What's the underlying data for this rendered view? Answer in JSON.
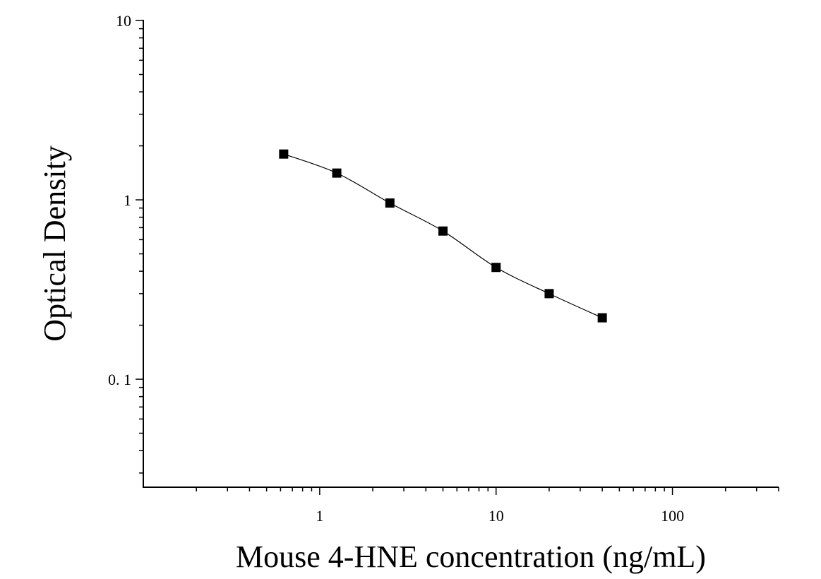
{
  "chart_data": {
    "type": "scatter",
    "title": "",
    "xlabel": "Mouse 4-HNE concentration (ng/mL)",
    "ylabel": "Optical Density",
    "xscale": "log",
    "yscale": "log",
    "xlim": [
      0.1,
      400
    ],
    "ylim": [
      0.025,
      10
    ],
    "x_ticks": [
      {
        "value": 1,
        "label": "1"
      },
      {
        "value": 10,
        "label": "10"
      },
      {
        "value": 100,
        "label": "100"
      }
    ],
    "y_ticks": [
      {
        "value": 0.1,
        "label": "0. 1"
      },
      {
        "value": 1,
        "label": "1"
      },
      {
        "value": 10,
        "label": "10"
      }
    ],
    "grid": false,
    "legend": "none",
    "marker": "square",
    "series": [
      {
        "x": [
          0.625,
          1.25,
          2.5,
          5,
          10,
          20,
          40
        ],
        "y": [
          1.8,
          1.41,
          0.96,
          0.67,
          0.42,
          0.3,
          0.22
        ]
      }
    ],
    "fit_curve": "smooth"
  }
}
